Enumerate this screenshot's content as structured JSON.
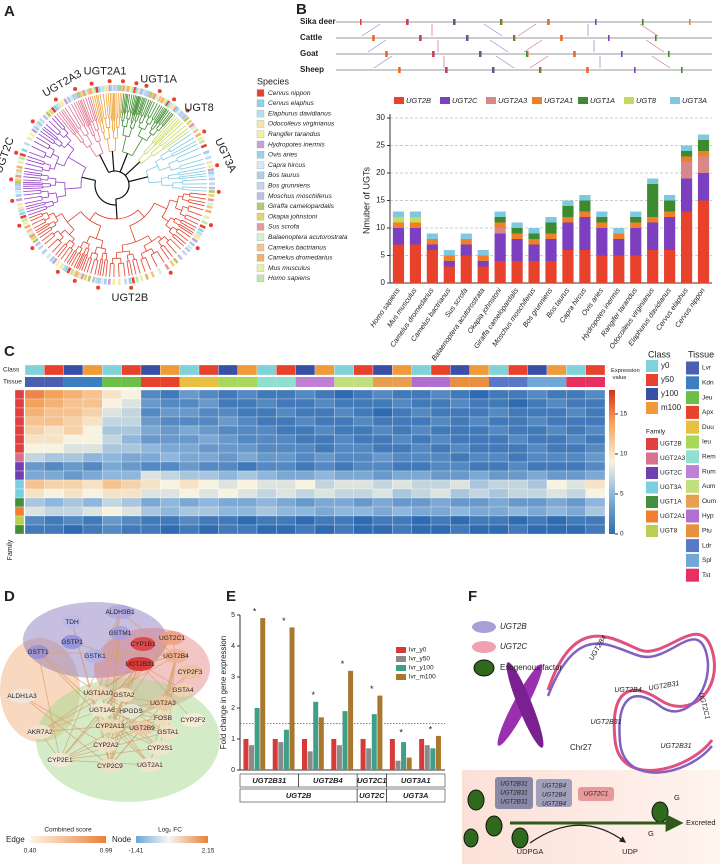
{
  "panel_labels": [
    "A",
    "B",
    "C",
    "D",
    "E",
    "F"
  ],
  "tree": {
    "clades": [
      {
        "name": "UGT2A3",
        "color": "#e07090"
      },
      {
        "name": "UGT2A1",
        "color": "#f0a030"
      },
      {
        "name": "UGT1A",
        "color": "#3d8b2f"
      },
      {
        "name": "UGT8",
        "color": "#c9d95a"
      },
      {
        "name": "UGT3A",
        "color": "#7fc9e0"
      },
      {
        "name": "UGT2B",
        "color": "#e0402c"
      },
      {
        "name": "UGT2C",
        "color": "#9040c0"
      }
    ],
    "legend_title": "Species",
    "species": [
      {
        "name": "Cervus nippon",
        "color": "#e8412c"
      },
      {
        "name": "Cervus elaphus",
        "color": "#8fd3e8"
      },
      {
        "name": "Elaphurus davidianus",
        "color": "#b8dff0"
      },
      {
        "name": "Odocoileus virginianus",
        "color": "#f3e7b0"
      },
      {
        "name": "Rangifer tarandus",
        "color": "#f5f0a0"
      },
      {
        "name": "Hydropotes inermis",
        "color": "#c9a0dc"
      },
      {
        "name": "Ovis aries",
        "color": "#9dd3e8"
      },
      {
        "name": "Capra hircus",
        "color": "#d7e9f5"
      },
      {
        "name": "Bos taurus",
        "color": "#b0cfe8"
      },
      {
        "name": "Bos grunniens",
        "color": "#c7d3f0"
      },
      {
        "name": "Moschus moschiferus",
        "color": "#b9c2e6"
      },
      {
        "name": "Giraffa camelopardalis",
        "color": "#b7c96b"
      },
      {
        "name": "Okapia johnstoni",
        "color": "#e6d36b"
      },
      {
        "name": "Sus scrofa",
        "color": "#e89a9a"
      },
      {
        "name": "Balaenoptera acutorostrata",
        "color": "#d6f0d6"
      },
      {
        "name": "Camelus bactrianus",
        "color": "#f4c48c"
      },
      {
        "name": "Camelus dromedarius",
        "color": "#f2b06a"
      },
      {
        "name": "Mus musculus",
        "color": "#e8f0a8"
      },
      {
        "name": "Homo sapiens",
        "color": "#c0e6b0"
      }
    ]
  },
  "synteny": {
    "species": [
      "Sika deer",
      "Cattle",
      "Goat",
      "Sheep"
    ]
  },
  "chart_data": [
    {
      "type": "stacked_bar",
      "ylabel": "Nmuber of UGTs",
      "categories": [
        "Homo sapiens",
        "Mus musculus",
        "Camelus dromedarius",
        "Camelus bactrianus",
        "Sus scrofa",
        "Balaenoptera acutorostrata",
        "Okapia johnstoni",
        "Giraffa camelopardalis",
        "Moschus moschiferus",
        "Bos grunniens",
        "Bos taurus",
        "Capra hircus",
        "Ovis aries",
        "Hydropotes inermis",
        "Rangifer tarandus",
        "Odocoileus virginianus",
        "Elaphurus davidianus",
        "Cervus elaphus",
        "Cervus nippon"
      ],
      "highlight": {
        "index": 18,
        "color": "#e02020"
      },
      "series": [
        {
          "name": "UGT2B",
          "color": "#e8412c",
          "values": [
            7,
            7,
            6,
            3,
            5,
            3,
            4,
            4,
            4,
            4,
            6,
            6,
            5,
            5,
            5,
            6,
            6,
            13,
            15
          ]
        },
        {
          "name": "UGT2C",
          "color": "#7b3fbf",
          "values": [
            3,
            3,
            1,
            1,
            2,
            1,
            5,
            4,
            3,
            4,
            5,
            6,
            5,
            3,
            5,
            5,
            6,
            6,
            5
          ]
        },
        {
          "name": "UGT2A3",
          "color": "#d9888a",
          "values": [
            0,
            0,
            0,
            0,
            0,
            0,
            1,
            0,
            0,
            0,
            0,
            0,
            0,
            0,
            0,
            0,
            0,
            3,
            3
          ]
        },
        {
          "name": "UGT2A1",
          "color": "#f07f2a",
          "values": [
            1,
            1,
            1,
            1,
            1,
            1,
            1,
            1,
            1,
            1,
            1,
            1,
            1,
            1,
            1,
            1,
            1,
            1,
            1
          ]
        },
        {
          "name": "UGT1A",
          "color": "#3d8b2f",
          "values": [
            0,
            0,
            0,
            0,
            0,
            0,
            1,
            1,
            1,
            2,
            2,
            2,
            1,
            0,
            1,
            6,
            2,
            1,
            2
          ]
        },
        {
          "name": "UGT8",
          "color": "#c9d95a",
          "values": [
            1,
            1,
            0,
            0,
            0,
            0,
            0,
            0,
            0,
            0,
            0,
            0,
            0,
            0,
            0,
            0,
            0,
            0,
            0
          ]
        },
        {
          "name": "UGT3A",
          "color": "#7fc9e0",
          "values": [
            1,
            1,
            1,
            1,
            1,
            1,
            1,
            1,
            1,
            1,
            1,
            1,
            1,
            1,
            1,
            1,
            1,
            1,
            1
          ]
        }
      ],
      "ylim": [
        0,
        30
      ],
      "yticks": [
        0,
        5,
        10,
        15,
        20,
        25,
        30
      ],
      "grid": true
    },
    {
      "type": "bar",
      "ylabel": "Fold change in gene expression",
      "categories": [
        null,
        null,
        null,
        null,
        null,
        null,
        null
      ],
      "series": [
        {
          "name": "lvr_y0",
          "color": "#d83a3a",
          "values": [
            1,
            1,
            1,
            1,
            1,
            1,
            1
          ]
        },
        {
          "name": "lvr_y50",
          "color": "#8a8a8a",
          "values": [
            0.8,
            0.9,
            0.6,
            0.8,
            0.7,
            0.3,
            0.8
          ]
        },
        {
          "name": "lvr_y100",
          "color": "#3f9f8a",
          "values": [
            2,
            1.3,
            2.2,
            1.9,
            1.8,
            0.9,
            0.7
          ]
        },
        {
          "name": "lvr_m100",
          "color": "#a8782e",
          "values": [
            4.9,
            4.6,
            1.7,
            3.2,
            2.4,
            0.4,
            1.1
          ]
        }
      ],
      "gene_labels": [
        {
          "label": "UGT2B31",
          "groups": 2
        },
        {
          "label": "UGT2B4",
          "groups": 2
        },
        {
          "label": "UGT2C1",
          "groups": 1
        },
        {
          "label": "UGT3A1",
          "groups": 2
        }
      ],
      "family_labels": [
        {
          "label": "UGT2B",
          "groups": 4
        },
        {
          "label": "UGT2C",
          "groups": 1
        },
        {
          "label": "UGT3A",
          "groups": 2
        }
      ],
      "significance_marker": "*",
      "threshold": 1.5,
      "ylim": [
        0,
        5
      ],
      "yticks": [
        0,
        1,
        2,
        3,
        4,
        5
      ]
    }
  ],
  "heatmap": {
    "row_title": "Family",
    "class_row": "Class",
    "tissue_row": "Tissue",
    "colorbar_title": "Expression value",
    "colorbar_lim": [
      0,
      18
    ],
    "colorbar_ticks": [
      0,
      5,
      10,
      15
    ],
    "class_title": "Class",
    "classes": [
      {
        "name": "y0",
        "color": "#7fd3d8"
      },
      {
        "name": "y50",
        "color": "#e8412c"
      },
      {
        "name": "y100",
        "color": "#3a4fa8"
      },
      {
        "name": "m100",
        "color": "#f09a3a"
      }
    ],
    "tissue_title": "Tissue",
    "tissues": [
      {
        "name": "Lvr",
        "color": "#4a5fb0"
      },
      {
        "name": "Kdn",
        "color": "#3b7fc0"
      },
      {
        "name": "Jeu",
        "color": "#6cc04a"
      },
      {
        "name": "Apx",
        "color": "#e8412c"
      },
      {
        "name": "Duu",
        "color": "#e8c040"
      },
      {
        "name": "Ieu",
        "color": "#a8d85a"
      },
      {
        "name": "Rem",
        "color": "#8fe0d0"
      },
      {
        "name": "Rum",
        "color": "#c080d8"
      },
      {
        "name": "Aum",
        "color": "#c0e080"
      },
      {
        "name": "Oum",
        "color": "#e8a050"
      },
      {
        "name": "Hyp",
        "color": "#b070d0"
      },
      {
        "name": "Ptu",
        "color": "#e89040"
      },
      {
        "name": "Ldr",
        "color": "#5878c8"
      },
      {
        "name": "Spl",
        "color": "#70a8d8"
      },
      {
        "name": "Tst",
        "color": "#e83060"
      }
    ],
    "family_title": "Family",
    "families": [
      {
        "name": "UGT2B",
        "color": "#e04040"
      },
      {
        "name": "UGT2A3",
        "color": "#d87090"
      },
      {
        "name": "UGT2C",
        "color": "#7040b0"
      },
      {
        "name": "UGT3A",
        "color": "#7ad0e0"
      },
      {
        "name": "UGT1A",
        "color": "#409040"
      },
      {
        "name": "UGT2A1",
        "color": "#f08030"
      },
      {
        "name": "UGT8",
        "color": "#b8d050"
      }
    ],
    "column_tissue": [
      0,
      0,
      1,
      1,
      2,
      2,
      3,
      3,
      4,
      4,
      5,
      5,
      6,
      6,
      7,
      7,
      8,
      8,
      9,
      9,
      10,
      10,
      11,
      11,
      12,
      12,
      13,
      13,
      14,
      14
    ],
    "column_class": [
      0,
      1,
      2,
      3,
      0,
      1,
      2,
      3,
      0,
      1,
      2,
      3,
      0,
      1,
      2,
      3,
      0,
      1,
      2,
      3,
      0,
      1,
      2,
      3,
      0,
      1,
      2,
      3,
      0,
      1
    ],
    "row_family": [
      0,
      0,
      0,
      0,
      0,
      0,
      0,
      1,
      2,
      2,
      3,
      3,
      4,
      5,
      6,
      4
    ],
    "values": [
      [
        15,
        14,
        13,
        12,
        10,
        9,
        2,
        1,
        3,
        2,
        1,
        2,
        1,
        1,
        2,
        1,
        0,
        1,
        2,
        1,
        1,
        2,
        1,
        0,
        1,
        1,
        2,
        1,
        1,
        2
      ],
      [
        14,
        13,
        12,
        12,
        9,
        8,
        3,
        2,
        2,
        3,
        1,
        1,
        2,
        1,
        1,
        2,
        1,
        1,
        1,
        2,
        1,
        1,
        2,
        1,
        1,
        0,
        1,
        2,
        1,
        1
      ],
      [
        13,
        12,
        12,
        11,
        8,
        7,
        2,
        3,
        3,
        2,
        2,
        1,
        1,
        2,
        1,
        1,
        2,
        1,
        0,
        1,
        2,
        1,
        1,
        1,
        2,
        1,
        1,
        1,
        2,
        1
      ],
      [
        12,
        12,
        11,
        10,
        7,
        7,
        3,
        2,
        2,
        2,
        3,
        2,
        1,
        1,
        2,
        1,
        1,
        2,
        1,
        1,
        1,
        2,
        1,
        2,
        1,
        1,
        2,
        1,
        1,
        1
      ],
      [
        11,
        10,
        11,
        9,
        6,
        6,
        4,
        3,
        4,
        3,
        2,
        2,
        2,
        1,
        1,
        2,
        1,
        1,
        2,
        1,
        2,
        1,
        1,
        1,
        2,
        1,
        1,
        2,
        1,
        2
      ],
      [
        10,
        10,
        9,
        9,
        7,
        5,
        3,
        3,
        3,
        4,
        3,
        2,
        2,
        2,
        1,
        1,
        2,
        1,
        1,
        2,
        1,
        2,
        1,
        1,
        1,
        2,
        1,
        1,
        2,
        1
      ],
      [
        9,
        9,
        8,
        8,
        6,
        6,
        5,
        4,
        4,
        3,
        3,
        3,
        2,
        2,
        2,
        1,
        2,
        2,
        1,
        1,
        2,
        1,
        2,
        1,
        1,
        1,
        2,
        1,
        1,
        2
      ],
      [
        7,
        6,
        6,
        5,
        5,
        4,
        4,
        5,
        4,
        4,
        3,
        4,
        3,
        3,
        2,
        3,
        2,
        2,
        3,
        2,
        2,
        2,
        1,
        2,
        2,
        1,
        2,
        2,
        2,
        3
      ],
      [
        3,
        2,
        3,
        2,
        4,
        3,
        2,
        2,
        3,
        2,
        2,
        1,
        2,
        2,
        1,
        2,
        1,
        2,
        2,
        1,
        1,
        2,
        2,
        1,
        1,
        2,
        1,
        1,
        1,
        2
      ],
      [
        4,
        4,
        3,
        4,
        5,
        5,
        8,
        7,
        6,
        6,
        5,
        6,
        5,
        4,
        4,
        5,
        4,
        4,
        3,
        4,
        4,
        3,
        3,
        4,
        3,
        3,
        4,
        3,
        3,
        4
      ],
      [
        12,
        11,
        11,
        10,
        12,
        11,
        10,
        9,
        10,
        9,
        8,
        9,
        8,
        8,
        9,
        7,
        8,
        8,
        7,
        8,
        7,
        7,
        8,
        6,
        7,
        7,
        6,
        9,
        8,
        10
      ],
      [
        10,
        9,
        10,
        9,
        10,
        10,
        8,
        8,
        9,
        8,
        9,
        8,
        7,
        8,
        7,
        8,
        7,
        7,
        8,
        6,
        7,
        8,
        6,
        7,
        6,
        7,
        7,
        8,
        7,
        9
      ],
      [
        6,
        5,
        6,
        5,
        7,
        6,
        4,
        5,
        4,
        5,
        4,
        4,
        5,
        4,
        3,
        4,
        4,
        3,
        4,
        3,
        3,
        4,
        3,
        3,
        4,
        3,
        3,
        4,
        3,
        5
      ],
      [
        8,
        7,
        7,
        8,
        9,
        8,
        6,
        5,
        6,
        6,
        5,
        5,
        6,
        5,
        5,
        4,
        5,
        5,
        4,
        5,
        4,
        4,
        5,
        4,
        4,
        5,
        4,
        5,
        4,
        6
      ],
      [
        2,
        1,
        2,
        1,
        3,
        2,
        1,
        1,
        2,
        1,
        1,
        0,
        1,
        1,
        0,
        1,
        1,
        0,
        1,
        1,
        0,
        1,
        0,
        1,
        1,
        0,
        1,
        0,
        1,
        1
      ],
      [
        1,
        1,
        0,
        1,
        2,
        1,
        1,
        0,
        1,
        0,
        1,
        1,
        0,
        0,
        1,
        0,
        1,
        0,
        0,
        1,
        0,
        0,
        1,
        0,
        0,
        1,
        0,
        0,
        0,
        1
      ]
    ]
  },
  "network": {
    "nodes": [
      "TDH",
      "ALDH3B1",
      "GSTP1",
      "GSTM1",
      "GSTT1",
      "GSTK1",
      "CYP1B1",
      "UGT2C1",
      "UGT2B4",
      "CYP2F3",
      "UGT2B31",
      "GSTA4",
      "ALDH1A3",
      "AKR7A2",
      "UGT1A10",
      "GSTA2",
      "UGT2A3",
      "UGT1A6",
      "HPGDS",
      "FOSB",
      "CYP2A13",
      "UGT2B9",
      "GSTA1",
      "CYP2F2",
      "CYP2A2",
      "CYP2S1",
      "CYP2E1",
      "CYP2C9",
      "UGT2A1"
    ],
    "edge_legend": {
      "title": "Edge",
      "label": "Combined score",
      "min": "0.40",
      "max": "0.99"
    },
    "node_legend": {
      "title": "Node",
      "label": "Log₂ FC",
      "min": "-1.41",
      "max": "2.15"
    }
  },
  "diagram": {
    "legend": [
      "UGT2B",
      "UGT2C",
      "Exogenous factor"
    ],
    "chromosome": "Chr27",
    "ribbon_genes": [
      "UGT2B4",
      "UGT2B4",
      "UGT2B31",
      "UGT2C1",
      "UGT2B31",
      "UGT2B31"
    ],
    "enzyme_boxes": [
      [
        "UGT2B31",
        "UGT2B31",
        "UGT2B31"
      ],
      [
        "UGT2B4",
        "UGT2B4",
        "UGT2B4"
      ]
    ],
    "ugt2c_box": "UGT2C1",
    "cofactor": "UDPGA",
    "byproduct": "UDP",
    "glucuronide": [
      "G",
      "G"
    ],
    "outcome": "Excreted"
  }
}
